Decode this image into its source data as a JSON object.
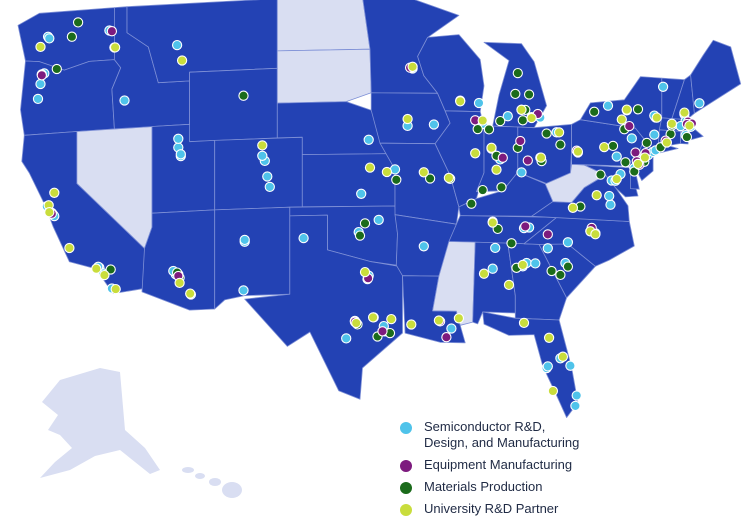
{
  "colors": {
    "land": "#2342b4",
    "excluded": "#d9def2",
    "border": "#7d8fd6",
    "background": "#ffffff",
    "semiconductor": "#4fc3ea",
    "equipment": "#7d1b7e",
    "materials": "#1b6b1b",
    "university": "#c9dd3c"
  },
  "map": {
    "highlighted_states_note": "",
    "excluded_states": [
      "North Dakota",
      "South Dakota",
      "Nevada",
      "Mississippi",
      "West Virginia",
      "Alaska",
      "Hawaii"
    ]
  },
  "legend": {
    "items": [
      {
        "key": "semiconductor",
        "label": "Semiconductor R&D,\nDesign, and Manufacturing",
        "color": "#4fc3ea"
      },
      {
        "key": "equipment",
        "label": "Equipment Manufacturing",
        "color": "#7d1b7e"
      },
      {
        "key": "materials",
        "label": "Materials Production",
        "color": "#1b6b1b"
      },
      {
        "key": "university",
        "label": "University R&D Partner",
        "color": "#c9dd3c"
      }
    ]
  },
  "points": {
    "semiconductor": [
      [
        -122.3,
        47.6
      ],
      [
        -122.6,
        45.5
      ],
      [
        -122.9,
        44.9
      ],
      [
        -123.1,
        44.05
      ],
      [
        -122.2,
        47.5
      ],
      [
        -122.4,
        37.8
      ],
      [
        -121.9,
        37.3
      ],
      [
        -122.0,
        37.4
      ],
      [
        -121.8,
        37.2
      ],
      [
        -118.2,
        34.05
      ],
      [
        -117.9,
        33.7
      ],
      [
        -117.2,
        32.8
      ],
      [
        -116.2,
        43.6
      ],
      [
        -111.9,
        40.7
      ],
      [
        -111.9,
        41.2
      ],
      [
        -105.0,
        39.7
      ],
      [
        -105.2,
        40.0
      ],
      [
        -104.8,
        38.8
      ],
      [
        -106.6,
        35.1
      ],
      [
        -106.7,
        32.3
      ],
      [
        -112.1,
        33.4
      ],
      [
        -111.9,
        33.4
      ],
      [
        -110.9,
        32.2
      ],
      [
        -97.7,
        30.3
      ],
      [
        -97.8,
        30.4
      ],
      [
        -96.8,
        32.8
      ],
      [
        -96.7,
        33.0
      ],
      [
        -95.4,
        29.8
      ],
      [
        -95.5,
        30.1
      ],
      [
        -98.5,
        29.4
      ],
      [
        -101.9,
        35.2
      ],
      [
        -97.5,
        35.5
      ],
      [
        -97.3,
        37.7
      ],
      [
        -95.9,
        36.2
      ],
      [
        -94.6,
        39.1
      ],
      [
        -96.7,
        40.8
      ],
      [
        -93.6,
        41.6
      ],
      [
        -91.5,
        41.7
      ],
      [
        -93.2,
        44.9
      ],
      [
        -93.3,
        44.95
      ],
      [
        -89.4,
        43.1
      ],
      [
        -87.9,
        43.0
      ],
      [
        -88.0,
        41.9
      ],
      [
        -87.6,
        41.8
      ],
      [
        -86.2,
        39.8
      ],
      [
        -86.9,
        40.4
      ],
      [
        -84.5,
        39.1
      ],
      [
        -83.0,
        40.0
      ],
      [
        -81.7,
        41.5
      ],
      [
        -83.0,
        42.3
      ],
      [
        -83.7,
        42.3
      ],
      [
        -85.6,
        42.3
      ],
      [
        -84.5,
        42.7
      ],
      [
        -80.0,
        40.4
      ],
      [
        -86.8,
        36.2
      ],
      [
        -84.4,
        33.7
      ],
      [
        -84.1,
        33.9
      ],
      [
        -83.4,
        33.9
      ],
      [
        -86.8,
        33.5
      ],
      [
        -86.6,
        34.7
      ],
      [
        -81.0,
        34.0
      ],
      [
        -82.4,
        34.8
      ],
      [
        -80.8,
        35.2
      ],
      [
        -78.9,
        35.9
      ],
      [
        -78.6,
        35.8
      ],
      [
        -79.0,
        35.9
      ],
      [
        -77.4,
        37.5
      ],
      [
        -77.3,
        38.9
      ],
      [
        -77.0,
        38.9
      ],
      [
        -76.6,
        39.3
      ],
      [
        -75.2,
        39.9
      ],
      [
        -75.5,
        39.7
      ],
      [
        -74.4,
        40.5
      ],
      [
        -74.7,
        40.35
      ],
      [
        -74.0,
        40.7
      ],
      [
        -73.8,
        40.8
      ],
      [
        -73.8,
        42.7
      ],
      [
        -73.9,
        42.8
      ],
      [
        -76.1,
        43.0
      ],
      [
        -77.6,
        43.2
      ],
      [
        -73.2,
        44.5
      ],
      [
        -71.5,
        43.0
      ],
      [
        -71.4,
        42.6
      ],
      [
        -71.2,
        42.4
      ],
      [
        -71.1,
        42.35
      ],
      [
        -71.0,
        42.3
      ],
      [
        -71.8,
        42.3
      ],
      [
        -72.9,
        41.3
      ],
      [
        -71.4,
        41.8
      ],
      [
        -70.3,
        43.7
      ],
      [
        -82.5,
        27.9
      ],
      [
        -82.4,
        28.0
      ],
      [
        -81.4,
        28.5
      ],
      [
        -80.2,
        25.8
      ],
      [
        -80.6,
        28.1
      ],
      [
        -80.1,
        26.4
      ],
      [
        -90.1,
        30.0
      ],
      [
        -117.0,
        46.7
      ],
      [
        -117.4,
        47.7
      ],
      [
        -112.0,
        46.6
      ],
      [
        -104.6,
        38.2
      ],
      [
        -111.7,
        40.2
      ],
      [
        -112.3,
        33.6
      ],
      [
        -92.3,
        34.7
      ],
      [
        -96.3,
        30.6
      ],
      [
        -77.5,
        38.0
      ],
      [
        -83.9,
        35.95
      ],
      [
        -84.3,
        35.9
      ],
      [
        -73.9,
        41.7
      ],
      [
        -75.7,
        41.4
      ],
      [
        -76.9,
        40.3
      ],
      [
        -106.6,
        35.2
      ],
      [
        -118.3,
        34.1
      ],
      [
        -111.7,
        40.3
      ]
    ],
    "equipment": [
      [
        -122.0,
        37.35
      ],
      [
        -122.8,
        45.4
      ],
      [
        -117.2,
        47.65
      ],
      [
        -111.9,
        33.3
      ],
      [
        -95.6,
        29.8
      ],
      [
        -97.8,
        30.35
      ],
      [
        -96.75,
        32.85
      ],
      [
        -91.0,
        30.4
      ],
      [
        -90.5,
        29.5
      ],
      [
        -93.4,
        44.95
      ],
      [
        -88.2,
        42.0
      ],
      [
        -86.0,
        39.9
      ],
      [
        -84.6,
        40.9
      ],
      [
        -84.0,
        39.8
      ],
      [
        -83.2,
        42.5
      ],
      [
        -80.1,
        40.5
      ],
      [
        -75.4,
        40.6
      ],
      [
        -75.3,
        40.1
      ],
      [
        -71.2,
        42.6
      ],
      [
        -70.9,
        42.5
      ],
      [
        -71.3,
        42.45
      ],
      [
        -73.0,
        41.4
      ],
      [
        -74.6,
        40.6
      ],
      [
        -75.9,
        42.1
      ],
      [
        -84.2,
        36.0
      ],
      [
        -82.4,
        35.6
      ],
      [
        -78.9,
        36.1
      ],
      [
        -75.1,
        39.9
      ]
    ],
    "materials": [
      [
        -122.8,
        45.45
      ],
      [
        -121.6,
        45.7
      ],
      [
        -120.4,
        47.5
      ],
      [
        -119.9,
        48.3
      ],
      [
        -117.3,
        33.9
      ],
      [
        -112.0,
        33.5
      ],
      [
        -111.8,
        33.2
      ],
      [
        -106.7,
        43.5
      ],
      [
        -97.6,
        30.2
      ],
      [
        -95.0,
        29.7
      ],
      [
        -96.0,
        29.5
      ],
      [
        -97.4,
        35.3
      ],
      [
        -97.0,
        36.0
      ],
      [
        -94.5,
        38.5
      ],
      [
        -91.8,
        38.6
      ],
      [
        -90.2,
        38.6
      ],
      [
        -88.5,
        37.2
      ],
      [
        -88.0,
        41.5
      ],
      [
        -87.1,
        41.5
      ],
      [
        -86.2,
        42.0
      ],
      [
        -84.2,
        42.7
      ],
      [
        -85.0,
        43.6
      ],
      [
        -84.8,
        44.8
      ],
      [
        -83.9,
        43.6
      ],
      [
        -84.4,
        42.1
      ],
      [
        -82.5,
        41.4
      ],
      [
        -82.9,
        39.8
      ],
      [
        -81.4,
        40.8
      ],
      [
        -84.8,
        40.5
      ],
      [
        -86.5,
        40.0
      ],
      [
        -86.1,
        38.2
      ],
      [
        -87.6,
        38.0
      ],
      [
        -86.4,
        35.8
      ],
      [
        -85.3,
        35.0
      ],
      [
        -81.4,
        33.3
      ],
      [
        -80.8,
        33.8
      ],
      [
        -79.8,
        37.3
      ],
      [
        -78.2,
        39.2
      ],
      [
        -77.2,
        40.9
      ],
      [
        -76.3,
        41.9
      ],
      [
        -74.5,
        41.2
      ],
      [
        -73.4,
        41.0
      ],
      [
        -72.6,
        41.8
      ],
      [
        -71.3,
        41.7
      ],
      [
        -74.7,
        40.1
      ],
      [
        -75.5,
        39.5
      ],
      [
        -76.2,
        40.0
      ],
      [
        -78.7,
        42.8
      ],
      [
        -75.2,
        43.1
      ],
      [
        -72.5,
        42.3
      ],
      [
        -84.9,
        33.6
      ],
      [
        -82.1,
        33.5
      ]
    ],
    "university": [
      [
        -122.25,
        37.85
      ],
      [
        -122.2,
        37.45
      ],
      [
        -121.8,
        38.55
      ],
      [
        -120.6,
        35.3
      ],
      [
        -117.8,
        33.6
      ],
      [
        -116.9,
        32.75
      ],
      [
        -118.45,
        34.0
      ],
      [
        -116.95,
        46.7
      ],
      [
        -110.95,
        32.25
      ],
      [
        -111.8,
        32.9
      ],
      [
        -111.6,
        45.7
      ],
      [
        -105.2,
        40.6
      ],
      [
        -97.7,
        30.28
      ],
      [
        -97.0,
        33.2
      ],
      [
        -96.35,
        30.6
      ],
      [
        -94.9,
        30.5
      ],
      [
        -93.3,
        30.2
      ],
      [
        -91.1,
        30.45
      ],
      [
        -89.5,
        30.6
      ],
      [
        -95.25,
        38.95
      ],
      [
        -96.6,
        39.2
      ],
      [
        -93.6,
        42.0
      ],
      [
        -93.2,
        45.0
      ],
      [
        -89.4,
        43.07
      ],
      [
        -88.2,
        40.1
      ],
      [
        -87.6,
        42.0
      ],
      [
        -86.9,
        40.45
      ],
      [
        -86.5,
        39.2
      ],
      [
        -84.5,
        42.7
      ],
      [
        -83.7,
        42.25
      ],
      [
        -82.95,
        40.0
      ],
      [
        -81.5,
        41.5
      ],
      [
        -80.0,
        40.45
      ],
      [
        -77.9,
        40.8
      ],
      [
        -76.5,
        42.45
      ],
      [
        -76.1,
        43.04
      ],
      [
        -73.7,
        42.7
      ],
      [
        -72.9,
        41.3
      ],
      [
        -71.1,
        42.37
      ],
      [
        -72.5,
        42.4
      ],
      [
        -71.5,
        43.1
      ],
      [
        -75.2,
        39.95
      ],
      [
        -74.65,
        40.35
      ],
      [
        -76.9,
        39.0
      ],
      [
        -78.5,
        38.0
      ],
      [
        -80.4,
        37.2
      ],
      [
        -79.0,
        35.9
      ],
      [
        -78.6,
        35.75
      ],
      [
        -82.3,
        29.65
      ],
      [
        -81.2,
        28.6
      ],
      [
        -84.3,
        30.45
      ],
      [
        -84.4,
        33.78
      ],
      [
        -86.8,
        36.15
      ],
      [
        -87.5,
        33.2
      ],
      [
        -92.3,
        38.95
      ],
      [
        -90.3,
        38.65
      ],
      [
        -85.5,
        32.6
      ],
      [
        -82.0,
        26.6
      ],
      [
        -122.9,
        47.05
      ]
    ]
  }
}
